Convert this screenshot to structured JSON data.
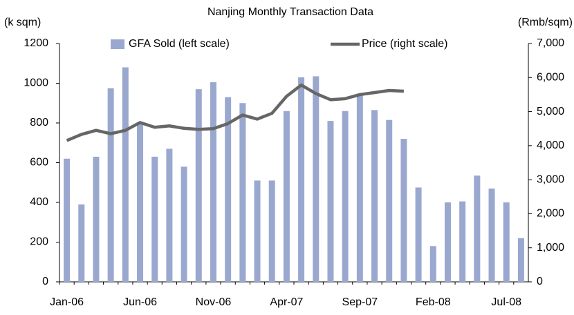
{
  "chart_data": {
    "type": "bar_line",
    "title": "Nanjing Monthly Transaction Data",
    "y_label": "(k sqm)",
    "y2_label": "(Rmb/sqm)",
    "categories": [
      "Jan-06",
      null,
      null,
      null,
      null,
      "Jun-06",
      null,
      null,
      null,
      null,
      "Nov-06",
      null,
      null,
      null,
      null,
      "Apr-07",
      null,
      null,
      null,
      null,
      "Sep-07",
      null,
      null,
      null,
      null,
      "Feb-08",
      null,
      null,
      null,
      null,
      "Jul-08",
      null
    ],
    "series": [
      {
        "name": "GFA Sold (left scale)",
        "type": "bar",
        "color": "#9aa8cf",
        "values": [
          620,
          390,
          630,
          975,
          1080,
          800,
          630,
          670,
          580,
          970,
          1005,
          930,
          900,
          510,
          510,
          860,
          1030,
          1035,
          810,
          860,
          940,
          865,
          815,
          720,
          475,
          180,
          400,
          405,
          535,
          470,
          400,
          220
        ]
      },
      {
        "name": "Price (right scale)",
        "type": "line",
        "axis": "y2",
        "color": "#666666",
        "values": [
          4150,
          4330,
          4450,
          4350,
          4450,
          4680,
          4540,
          4580,
          4510,
          4480,
          4500,
          4650,
          4900,
          4780,
          4950,
          5450,
          5780,
          5530,
          5350,
          5380,
          5500,
          5560,
          5620,
          5600,
          null,
          null,
          null,
          null,
          null,
          null,
          null,
          null
        ]
      }
    ],
    "ylim": [
      0,
      1200
    ],
    "yticks": [
      0,
      200,
      400,
      600,
      800,
      1000,
      1200
    ],
    "y2lim": [
      0,
      7000
    ],
    "y2ticks": [
      0,
      {
        "value": 1000,
        "label": "1,000"
      },
      {
        "value": 2000,
        "label": "2,000"
      },
      {
        "value": 3000,
        "label": "3,000"
      },
      {
        "value": 4000,
        "label": "4,000"
      },
      {
        "value": 5000,
        "label": "5,000"
      },
      {
        "value": 6000,
        "label": "6,000"
      },
      {
        "value": 7000,
        "label": "7,000"
      }
    ],
    "grid": false
  }
}
